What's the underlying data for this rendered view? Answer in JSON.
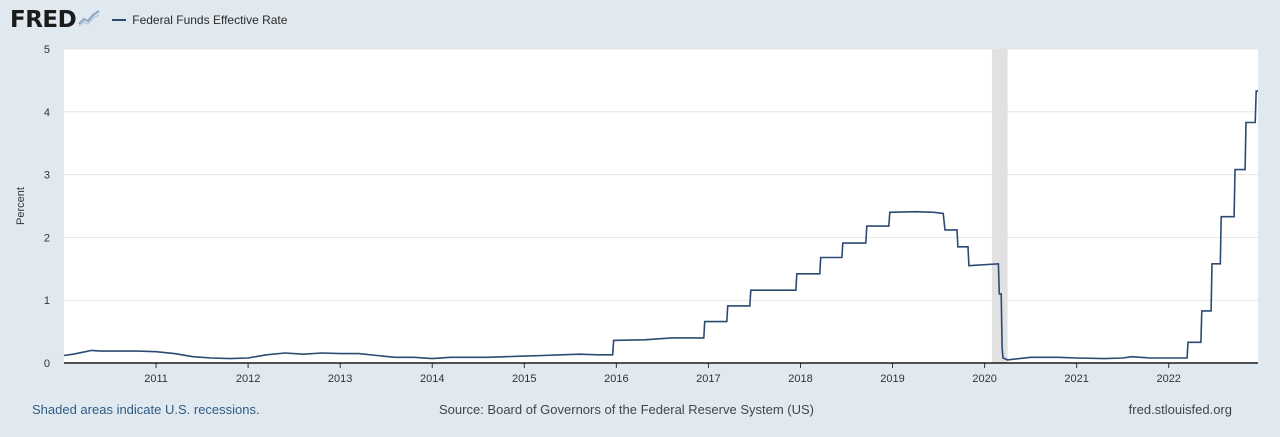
{
  "header": {
    "logo_text": "FRED",
    "legend_label": "Federal Funds Effective Rate"
  },
  "colors": {
    "series": "#2b4b73",
    "recession": "#e1e1e1",
    "background": "#e1e9f0",
    "grid": "#e6e6e6",
    "plot_bg": "#ffffff"
  },
  "footer": {
    "left_note": "Shaded areas indicate U.S. recessions.",
    "source": "Source: Board of Governors of the Federal Reserve System (US)",
    "site": "fred.stlouisfed.org"
  },
  "chart_data": {
    "type": "line",
    "title": "",
    "ylabel": "Percent",
    "xlabel": "",
    "xlim": [
      2010.0,
      2022.97
    ],
    "ylim": [
      0,
      5
    ],
    "yticks": [
      "0",
      "1",
      "2",
      "3",
      "4",
      "5"
    ],
    "xticks": [
      {
        "value": 2011,
        "label": "2011"
      },
      {
        "value": 2012,
        "label": "2012"
      },
      {
        "value": 2013,
        "label": "2013"
      },
      {
        "value": 2014,
        "label": "2014"
      },
      {
        "value": 2015,
        "label": "2015"
      },
      {
        "value": 2016,
        "label": "2016"
      },
      {
        "value": 2017,
        "label": "2017"
      },
      {
        "value": 2018,
        "label": "2018"
      },
      {
        "value": 2019,
        "label": "2019"
      },
      {
        "value": 2020,
        "label": "2020"
      },
      {
        "value": 2021,
        "label": "2021"
      },
      {
        "value": 2022,
        "label": "2022"
      }
    ],
    "recessions": [
      [
        2020.08,
        2020.25
      ]
    ],
    "series": [
      {
        "name": "Federal Funds Effective Rate",
        "points": [
          [
            2010.0,
            0.12
          ],
          [
            2010.1,
            0.14
          ],
          [
            2010.2,
            0.17
          ],
          [
            2010.3,
            0.2
          ],
          [
            2010.4,
            0.19
          ],
          [
            2010.6,
            0.19
          ],
          [
            2010.8,
            0.19
          ],
          [
            2011.0,
            0.18
          ],
          [
            2011.2,
            0.15
          ],
          [
            2011.4,
            0.1
          ],
          [
            2011.6,
            0.08
          ],
          [
            2011.8,
            0.07
          ],
          [
            2012.0,
            0.08
          ],
          [
            2012.2,
            0.13
          ],
          [
            2012.4,
            0.16
          ],
          [
            2012.6,
            0.14
          ],
          [
            2012.8,
            0.16
          ],
          [
            2013.0,
            0.15
          ],
          [
            2013.2,
            0.15
          ],
          [
            2013.4,
            0.12
          ],
          [
            2013.6,
            0.09
          ],
          [
            2013.8,
            0.09
          ],
          [
            2014.0,
            0.07
          ],
          [
            2014.2,
            0.09
          ],
          [
            2014.4,
            0.09
          ],
          [
            2014.6,
            0.09
          ],
          [
            2014.8,
            0.1
          ],
          [
            2015.0,
            0.11
          ],
          [
            2015.2,
            0.12
          ],
          [
            2015.4,
            0.13
          ],
          [
            2015.6,
            0.14
          ],
          [
            2015.8,
            0.13
          ],
          [
            2015.96,
            0.13
          ],
          [
            2015.97,
            0.36
          ],
          [
            2016.3,
            0.37
          ],
          [
            2016.6,
            0.4
          ],
          [
            2016.95,
            0.4
          ],
          [
            2016.96,
            0.66
          ],
          [
            2017.2,
            0.66
          ],
          [
            2017.21,
            0.91
          ],
          [
            2017.45,
            0.91
          ],
          [
            2017.46,
            1.16
          ],
          [
            2017.95,
            1.16
          ],
          [
            2017.96,
            1.42
          ],
          [
            2018.21,
            1.42
          ],
          [
            2018.22,
            1.68
          ],
          [
            2018.45,
            1.68
          ],
          [
            2018.46,
            1.91
          ],
          [
            2018.71,
            1.91
          ],
          [
            2018.72,
            2.18
          ],
          [
            2018.96,
            2.18
          ],
          [
            2018.97,
            2.4
          ],
          [
            2019.25,
            2.41
          ],
          [
            2019.45,
            2.4
          ],
          [
            2019.55,
            2.38
          ],
          [
            2019.57,
            2.12
          ],
          [
            2019.7,
            2.12
          ],
          [
            2019.71,
            1.85
          ],
          [
            2019.82,
            1.85
          ],
          [
            2019.83,
            1.55
          ],
          [
            2020.15,
            1.58
          ],
          [
            2020.16,
            1.1
          ],
          [
            2020.18,
            1.1
          ],
          [
            2020.19,
            0.25
          ],
          [
            2020.2,
            0.08
          ],
          [
            2020.25,
            0.05
          ],
          [
            2020.5,
            0.09
          ],
          [
            2020.8,
            0.09
          ],
          [
            2021.0,
            0.08
          ],
          [
            2021.3,
            0.07
          ],
          [
            2021.5,
            0.08
          ],
          [
            2021.6,
            0.1
          ],
          [
            2021.8,
            0.08
          ],
          [
            2022.2,
            0.08
          ],
          [
            2022.21,
            0.33
          ],
          [
            2022.35,
            0.33
          ],
          [
            2022.36,
            0.83
          ],
          [
            2022.46,
            0.83
          ],
          [
            2022.47,
            1.58
          ],
          [
            2022.56,
            1.58
          ],
          [
            2022.57,
            2.33
          ],
          [
            2022.71,
            2.33
          ],
          [
            2022.72,
            3.08
          ],
          [
            2022.83,
            3.08
          ],
          [
            2022.84,
            3.83
          ],
          [
            2022.94,
            3.83
          ],
          [
            2022.95,
            4.33
          ],
          [
            2022.97,
            4.33
          ]
        ]
      }
    ]
  }
}
